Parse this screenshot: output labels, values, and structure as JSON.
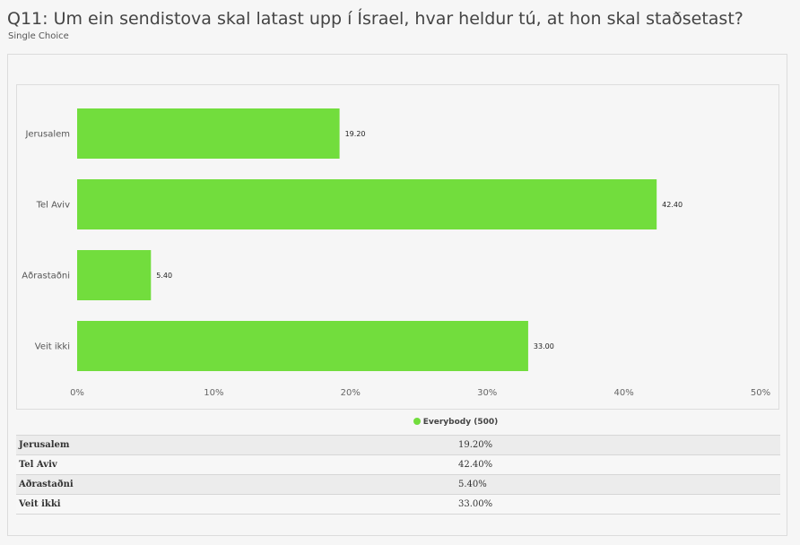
{
  "question": {
    "title": "Q11: Um ein sendistova skal latast upp í Ísrael, hvar heldur tú, at hon skal staðsetast?",
    "type": "Single Choice"
  },
  "legend": {
    "label": "Everybody (500)",
    "color": "#72dd3d"
  },
  "table": {
    "rows": [
      {
        "label": "Jerusalem",
        "value": "19.20%"
      },
      {
        "label": "Tel Aviv",
        "value": "42.40%"
      },
      {
        "label": "Aðrastaðni",
        "value": "5.40%"
      },
      {
        "label": "Veit ikki",
        "value": "33.00%"
      }
    ]
  },
  "chart_data": {
    "type": "bar",
    "orientation": "horizontal",
    "categories": [
      "Jerusalem",
      "Tel Aviv",
      "Aðrastaðni",
      "Veit ikki"
    ],
    "series": [
      {
        "name": "Everybody (500)",
        "values": [
          19.2,
          42.4,
          5.4,
          33.0
        ],
        "color": "#72dd3d"
      }
    ],
    "data_labels": [
      "19.20",
      "42.40",
      "5.40",
      "33.00"
    ],
    "xlim": [
      0,
      50
    ],
    "xticks": [
      0,
      10,
      20,
      30,
      40,
      50
    ],
    "xtick_labels": [
      "0%",
      "10%",
      "20%",
      "30%",
      "40%",
      "50%"
    ],
    "grid": false,
    "legend_position": "bottom"
  }
}
